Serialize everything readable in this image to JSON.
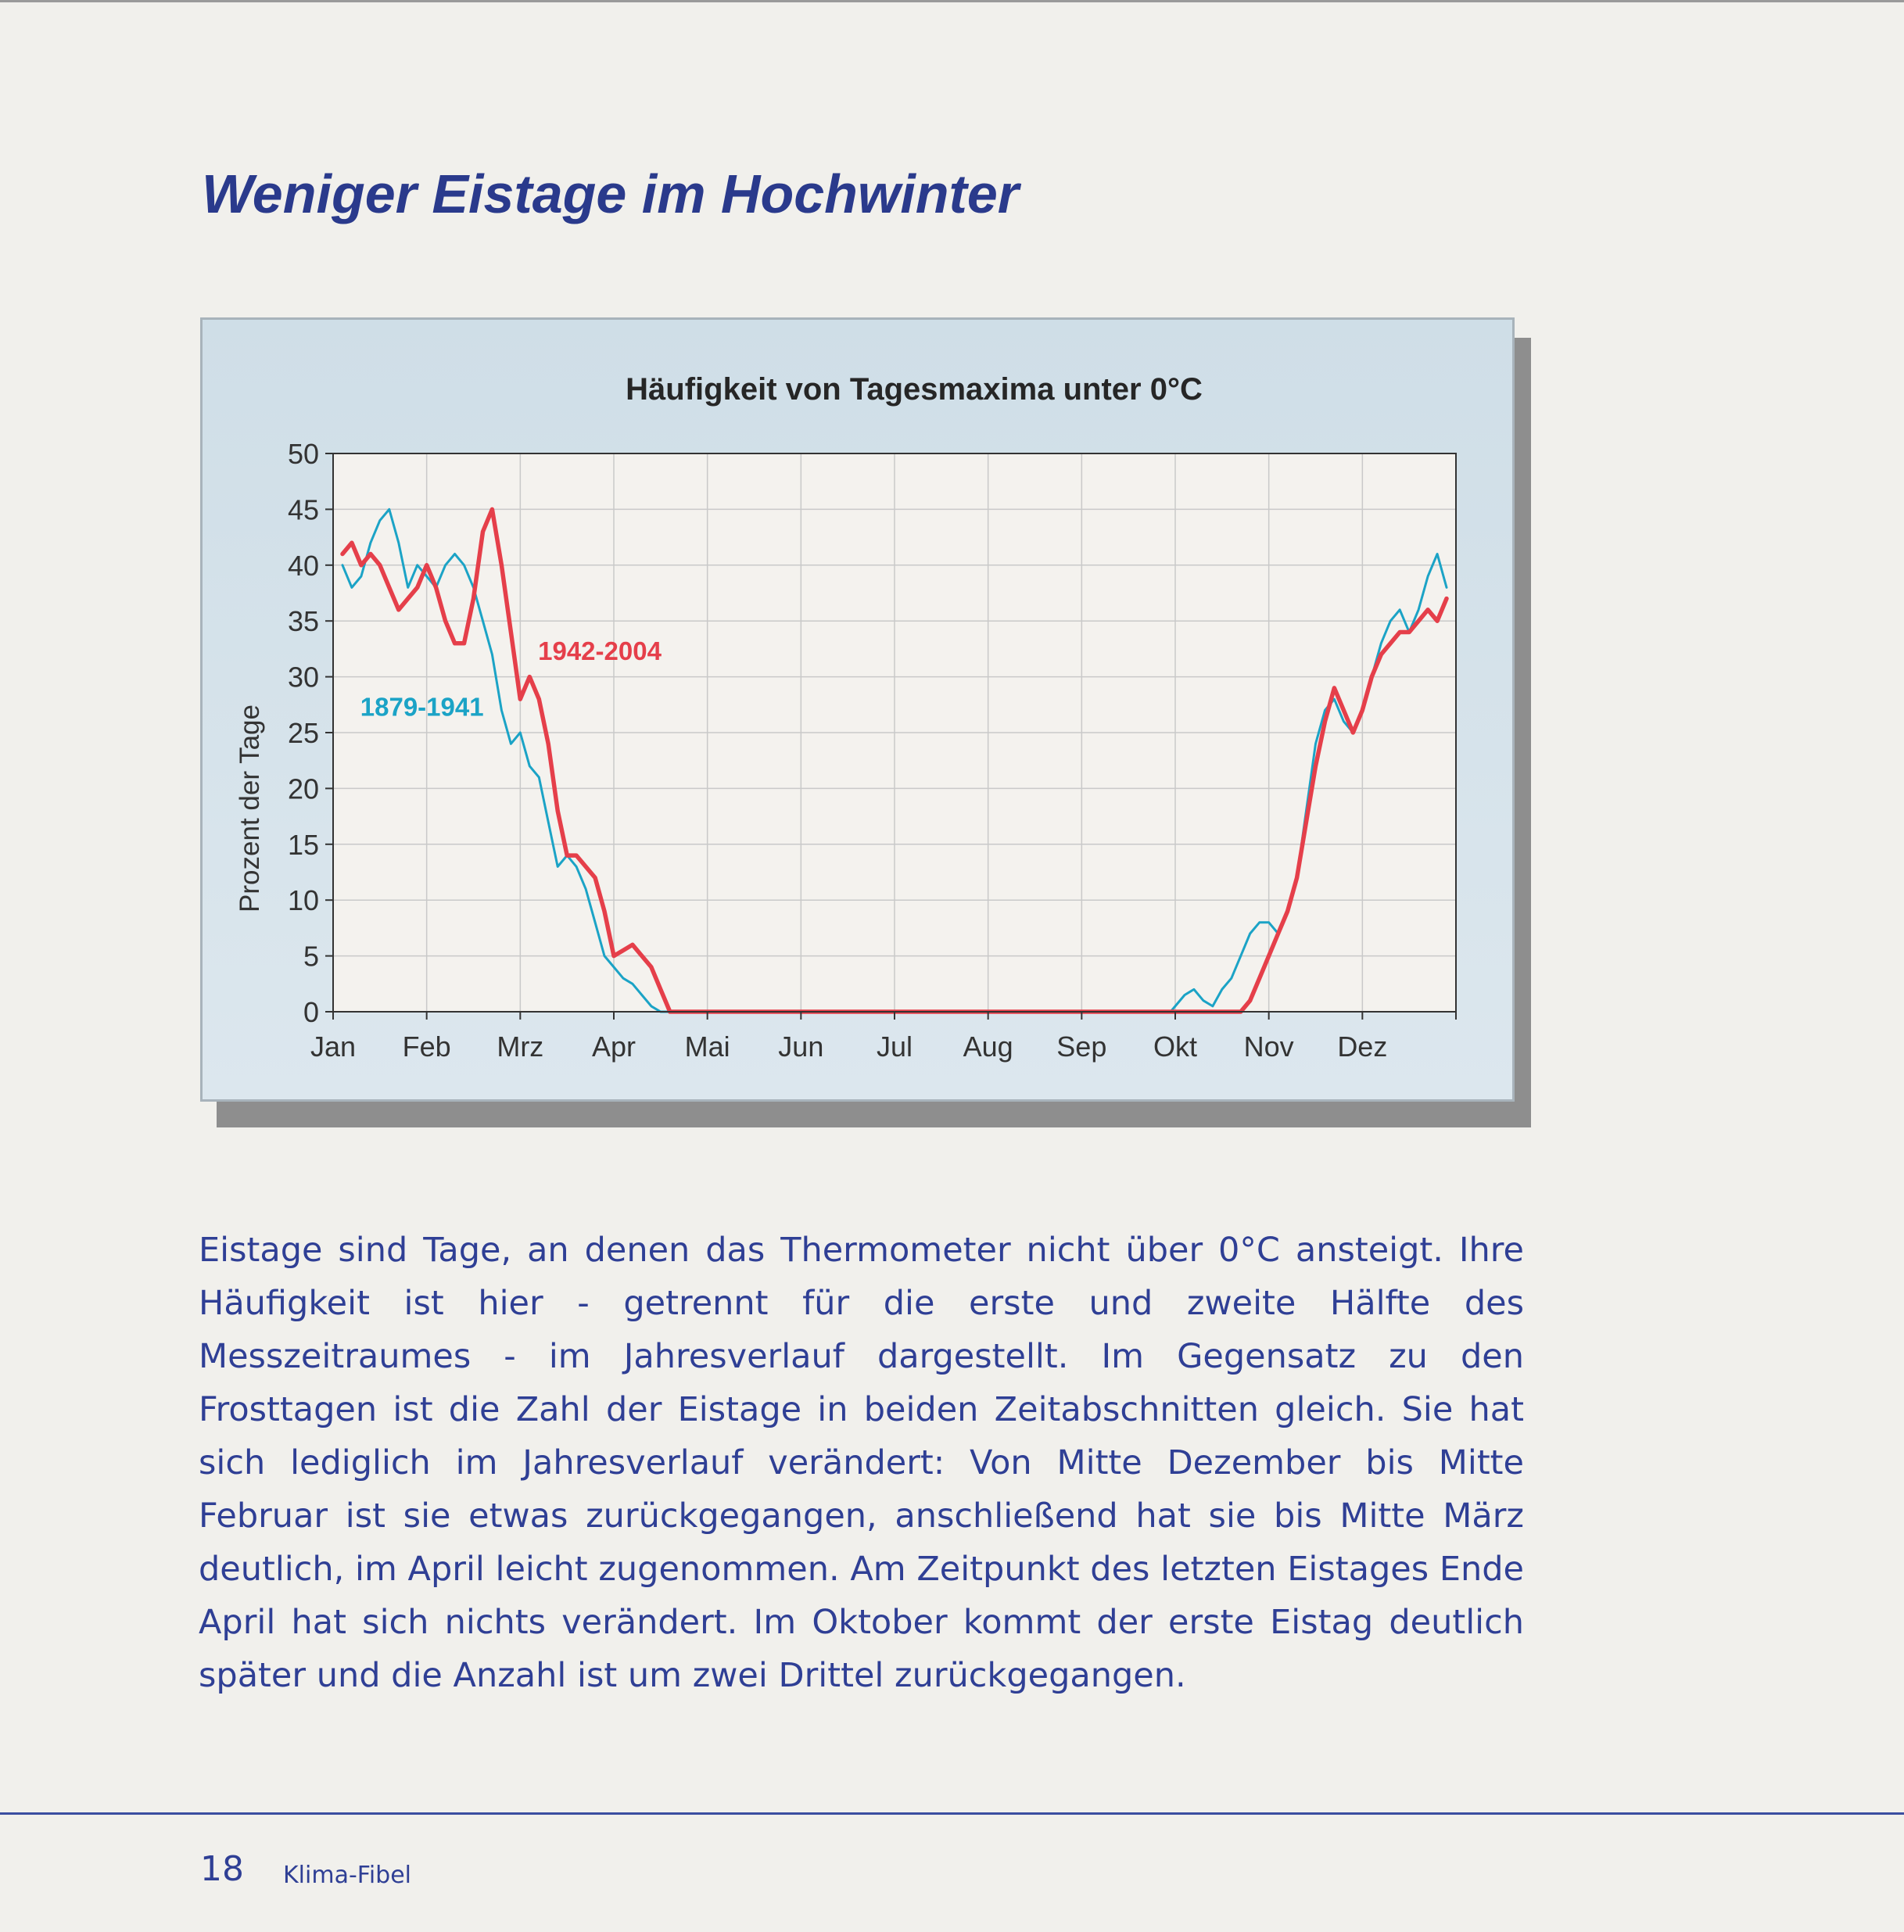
{
  "page": {
    "title": "Weniger Eistage im Hochwinter",
    "paragraph": "Eistage sind Tage, an denen das Thermometer nicht über 0°C ansteigt. Ihre Häufigkeit ist hier - getrennt für die erste und zweite Hälfte des Messzeitraumes - im Jahresverlauf dargestellt. Im Gegensatz zu den Frosttagen ist die Zahl der Eistage in beiden Zeitabschnitten gleich. Sie hat sich lediglich im Jahresverlauf verändert: Von Mitte Dezember bis Mitte Februar ist sie etwas zurückgegangen, anschließend hat sie bis Mitte März deutlich, im April leicht zugenommen. Am Zeitpunkt des letzten Eistages Ende April hat sich nichts verändert. Im Oktober kommt der erste Eistag deutlich später und die Anzahl ist um zwei Drittel zurückgegangen.",
    "footer": {
      "page_number": "18",
      "publication": "Klima-Fibel"
    }
  },
  "chart_data": {
    "type": "line",
    "title": "Häufigkeit von Tagesmaxima unter 0°C",
    "xlabel": "",
    "ylabel": "Prozent der Tage",
    "ylim": [
      0,
      50
    ],
    "yticks": [
      "0",
      "5",
      "10",
      "15",
      "20",
      "25",
      "30",
      "35",
      "40",
      "45",
      "50"
    ],
    "xlim": [
      0,
      12
    ],
    "categories": [
      "Jan",
      "Feb",
      "Mrz",
      "Apr",
      "Mai",
      "Jun",
      "Jul",
      "Aug",
      "Sep",
      "Okt",
      "Nov",
      "Dez"
    ],
    "grid": true,
    "series": [
      {
        "name": "1879-1941",
        "color": "#1ba3c6",
        "x": [
          0.1,
          0.2,
          0.3,
          0.4,
          0.5,
          0.6,
          0.7,
          0.8,
          0.9,
          1.0,
          1.1,
          1.2,
          1.3,
          1.4,
          1.5,
          1.6,
          1.7,
          1.8,
          1.9,
          2.0,
          2.1,
          2.2,
          2.3,
          2.4,
          2.5,
          2.6,
          2.7,
          2.8,
          2.9,
          3.0,
          3.1,
          3.2,
          3.3,
          3.4,
          3.5,
          3.6,
          3.7,
          3.8,
          3.9,
          4.0,
          8.95,
          9.1,
          9.2,
          9.3,
          9.4,
          9.5,
          9.6,
          9.7,
          9.8,
          9.9,
          10.0,
          10.1,
          10.2,
          10.3,
          10.4,
          10.5,
          10.6,
          10.7,
          10.8,
          10.9,
          11.0,
          11.1,
          11.2,
          11.3,
          11.4,
          11.5,
          11.6,
          11.7,
          11.8,
          11.9
        ],
        "values": [
          40,
          38,
          39,
          42,
          44,
          45,
          42,
          38,
          40,
          39,
          38,
          40,
          41,
          40,
          38,
          35,
          32,
          27,
          24,
          25,
          22,
          21,
          17,
          13,
          14,
          13,
          11,
          8,
          5,
          4,
          3,
          2.5,
          1.5,
          0.5,
          0,
          0,
          0,
          0,
          0,
          0,
          0,
          1.5,
          2,
          1,
          0.5,
          2,
          3,
          5,
          7,
          8,
          8,
          7,
          9,
          12,
          18,
          24,
          27,
          28,
          26,
          25,
          27,
          30,
          33,
          35,
          36,
          34,
          36,
          39,
          41,
          38
        ]
      },
      {
        "name": "1942-2004",
        "color": "#e53f4a",
        "x": [
          0.1,
          0.2,
          0.3,
          0.4,
          0.5,
          0.6,
          0.7,
          0.8,
          0.9,
          1.0,
          1.1,
          1.2,
          1.3,
          1.4,
          1.5,
          1.6,
          1.7,
          1.8,
          1.9,
          2.0,
          2.1,
          2.2,
          2.3,
          2.4,
          2.5,
          2.6,
          2.7,
          2.8,
          2.9,
          3.0,
          3.1,
          3.2,
          3.3,
          3.4,
          3.5,
          3.6,
          3.7,
          3.8,
          3.9,
          4.0,
          9.3,
          9.4,
          9.5,
          9.6,
          9.7,
          9.8,
          9.9,
          10.0,
          10.1,
          10.2,
          10.3,
          10.4,
          10.5,
          10.6,
          10.7,
          10.8,
          10.9,
          11.0,
          11.1,
          11.2,
          11.3,
          11.4,
          11.5,
          11.6,
          11.7,
          11.8,
          11.9
        ],
        "values": [
          41,
          42,
          40,
          41,
          40,
          38,
          36,
          37,
          38,
          40,
          38,
          35,
          33,
          33,
          37,
          43,
          45,
          40,
          34,
          28,
          30,
          28,
          24,
          18,
          14,
          14,
          13,
          12,
          9,
          5,
          5.5,
          6,
          5,
          4,
          2,
          0,
          0,
          0,
          0,
          0,
          0,
          0,
          0,
          0,
          0,
          1,
          3,
          5,
          7,
          9,
          12,
          17,
          22,
          26,
          29,
          27,
          25,
          27,
          30,
          32,
          33,
          34,
          34,
          35,
          36,
          35,
          37
        ]
      }
    ],
    "annotations": [
      {
        "text": "1879-1941",
        "series": "1879-1941",
        "x": 0.95,
        "y": 26.5
      },
      {
        "text": "1942-2004",
        "series": "1942-2004",
        "x": 2.85,
        "y": 31.5
      }
    ]
  }
}
